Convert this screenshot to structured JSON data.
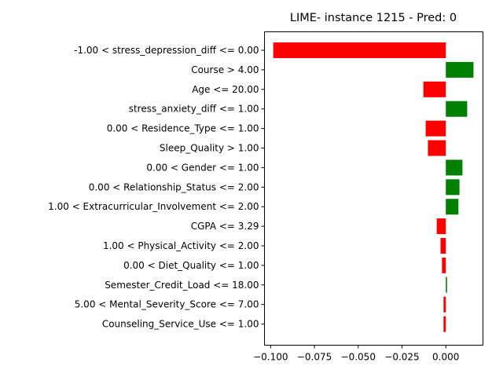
{
  "chart_data": {
    "type": "bar",
    "orientation": "horizontal",
    "title": "LIME- instance 1215 - Pred: 0",
    "xlabel": "",
    "ylabel": "",
    "xlim": [
      -0.1035,
      0.0212
    ],
    "xticks": [
      -0.1,
      -0.075,
      -0.05,
      -0.025,
      0.0
    ],
    "xtick_labels": [
      "−0.100",
      "−0.075",
      "−0.050",
      "−0.025",
      "0.000"
    ],
    "grid": false,
    "categories": [
      "-1.00 < stress_depression_diff <= 0.00",
      "Course > 4.00",
      "Age <= 20.00",
      "stress_anxiety_diff <= 1.00",
      "0.00 < Residence_Type <= 1.00",
      "Sleep_Quality > 1.00",
      "0.00 < Gender <= 1.00",
      "0.00 < Relationship_Status <= 2.00",
      "1.00 < Extracurricular_Involvement <= 2.00",
      "CGPA <= 3.29",
      "1.00 < Physical_Activity <= 2.00",
      "0.00 < Diet_Quality <= 1.00",
      "Semester_Credit_Load <= 18.00",
      "5.00 < Mental_Severity_Score <= 7.00",
      "Counseling_Service_Use <= 1.00"
    ],
    "values": [
      -0.0985,
      0.0158,
      -0.0128,
      0.0122,
      -0.0115,
      -0.0102,
      0.0095,
      0.0078,
      0.0072,
      -0.0052,
      -0.003,
      -0.0022,
      0.0007,
      -0.0013,
      -0.0013
    ],
    "colors": {
      "positive": "#008000",
      "negative": "#ff0000"
    }
  }
}
